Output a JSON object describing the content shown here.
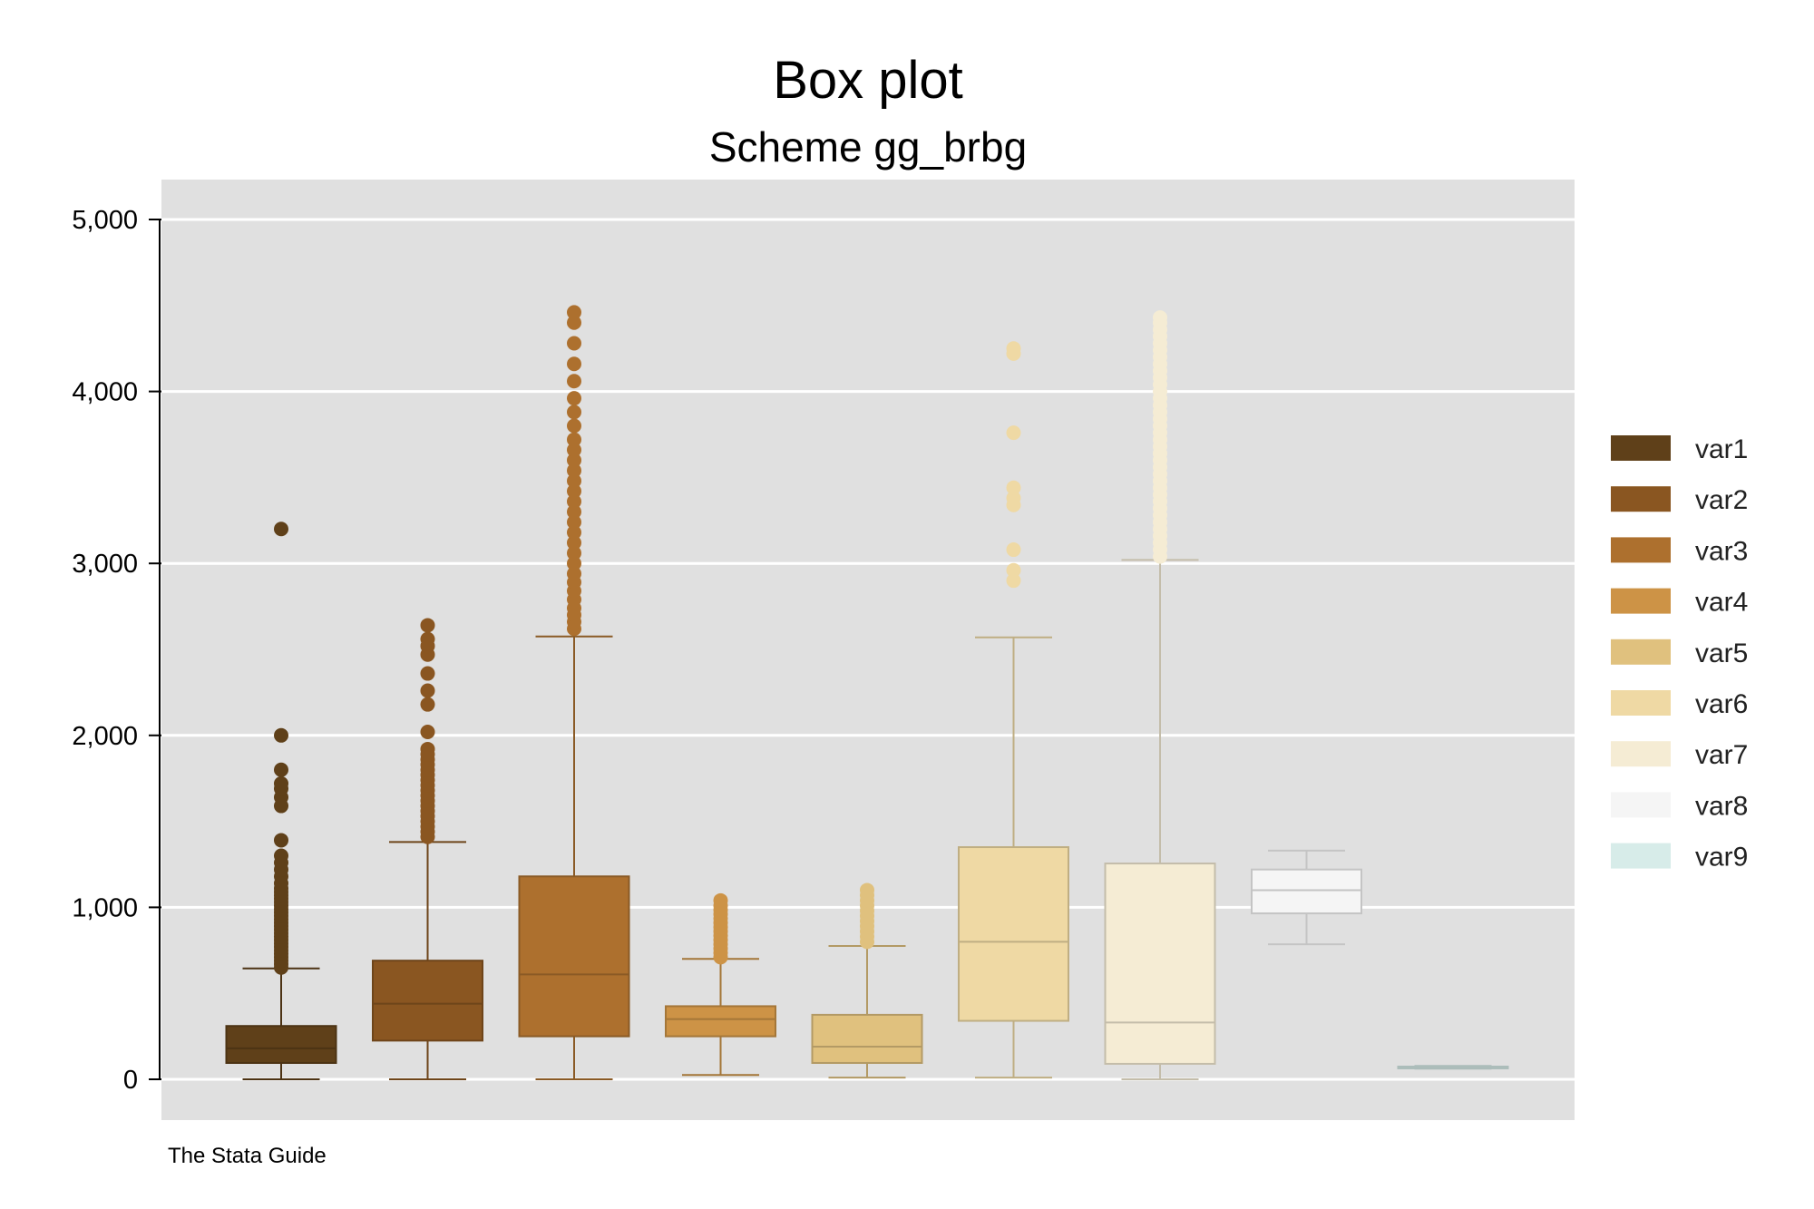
{
  "chart_data": {
    "type": "box",
    "title": "Box plot",
    "subtitle": "Scheme gg_brbg",
    "note": "The Stata Guide",
    "ylim": [
      0,
      5000
    ],
    "yticks": [
      0,
      1000,
      2000,
      3000,
      4000,
      5000
    ],
    "ytick_labels": [
      "0",
      "1,000",
      "2,000",
      "3,000",
      "4,000",
      "5,000"
    ],
    "grid": true,
    "legend_position": "right",
    "plot_background": "#e0e0e0",
    "series": [
      {
        "name": "var1",
        "color": "#5f4019",
        "whisker_low": 0,
        "q1": 95,
        "median": 180,
        "q3": 310,
        "whisker_high": 645,
        "outliers": [
          650,
          670,
          690,
          710,
          730,
          750,
          770,
          790,
          810,
          830,
          850,
          870,
          890,
          910,
          930,
          950,
          970,
          990,
          1010,
          1030,
          1050,
          1070,
          1090,
          1110,
          1140,
          1180,
          1220,
          1260,
          1300,
          1390,
          1590,
          1640,
          1690,
          1720,
          1800,
          2000,
          3200
        ]
      },
      {
        "name": "var2",
        "color": "#8a5621",
        "whisker_low": 0,
        "q1": 225,
        "median": 440,
        "q3": 690,
        "whisker_high": 1380,
        "outliers": [
          1410,
          1440,
          1470,
          1500,
          1530,
          1560,
          1590,
          1620,
          1650,
          1680,
          1710,
          1740,
          1770,
          1800,
          1830,
          1860,
          1890,
          1920,
          2020,
          2180,
          2260,
          2360,
          2470,
          2520,
          2560,
          2640
        ]
      },
      {
        "name": "var3",
        "color": "#ad702e",
        "whisker_low": 0,
        "q1": 250,
        "median": 610,
        "q3": 1180,
        "whisker_high": 2575,
        "outliers": [
          2620,
          2660,
          2700,
          2740,
          2790,
          2840,
          2890,
          2940,
          3000,
          3060,
          3120,
          3180,
          3240,
          3300,
          3360,
          3420,
          3480,
          3540,
          3600,
          3660,
          3720,
          3800,
          3880,
          3960,
          4060,
          4160,
          4280,
          4400,
          4460
        ]
      },
      {
        "name": "var4",
        "color": "#cd9346",
        "whisker_low": 25,
        "q1": 250,
        "median": 350,
        "q3": 425,
        "whisker_high": 700,
        "outliers": [
          710,
          735,
          760,
          785,
          810,
          835,
          860,
          885,
          910,
          935,
          960,
          985,
          1010,
          1040
        ]
      },
      {
        "name": "var5",
        "color": "#e0c17e",
        "whisker_low": 10,
        "q1": 95,
        "median": 190,
        "q3": 375,
        "whisker_high": 775,
        "outliers": [
          800,
          830,
          860,
          890,
          920,
          950,
          980,
          1010,
          1040,
          1070,
          1100
        ]
      },
      {
        "name": "var6",
        "color": "#efd9a4",
        "whisker_low": 10,
        "q1": 340,
        "median": 800,
        "q3": 1350,
        "whisker_high": 2570,
        "outliers": [
          2900,
          2960,
          3080,
          3340,
          3380,
          3440,
          3760,
          4220,
          4250
        ]
      },
      {
        "name": "var7",
        "color": "#f5ecd4",
        "whisker_low": 0,
        "q1": 90,
        "median": 330,
        "q3": 1255,
        "whisker_high": 3020,
        "outliers": [
          3040,
          3080,
          3120,
          3160,
          3200,
          3240,
          3280,
          3320,
          3360,
          3400,
          3440,
          3480,
          3520,
          3560,
          3600,
          3640,
          3680,
          3720,
          3760,
          3800,
          3840,
          3880,
          3920,
          3960,
          4000,
          4040,
          4080,
          4120,
          4160,
          4200,
          4240,
          4280,
          4320,
          4360,
          4400,
          4430
        ]
      },
      {
        "name": "var8",
        "color": "#f5f5f5",
        "whisker_low": 785,
        "q1": 965,
        "median": 1100,
        "q3": 1220,
        "whisker_high": 1330,
        "outliers": []
      },
      {
        "name": "var9",
        "color": "#d7ece9",
        "whisker_low": 62,
        "q1": 66,
        "median": 70,
        "q3": 74,
        "whisker_high": 78,
        "outliers": []
      }
    ]
  }
}
